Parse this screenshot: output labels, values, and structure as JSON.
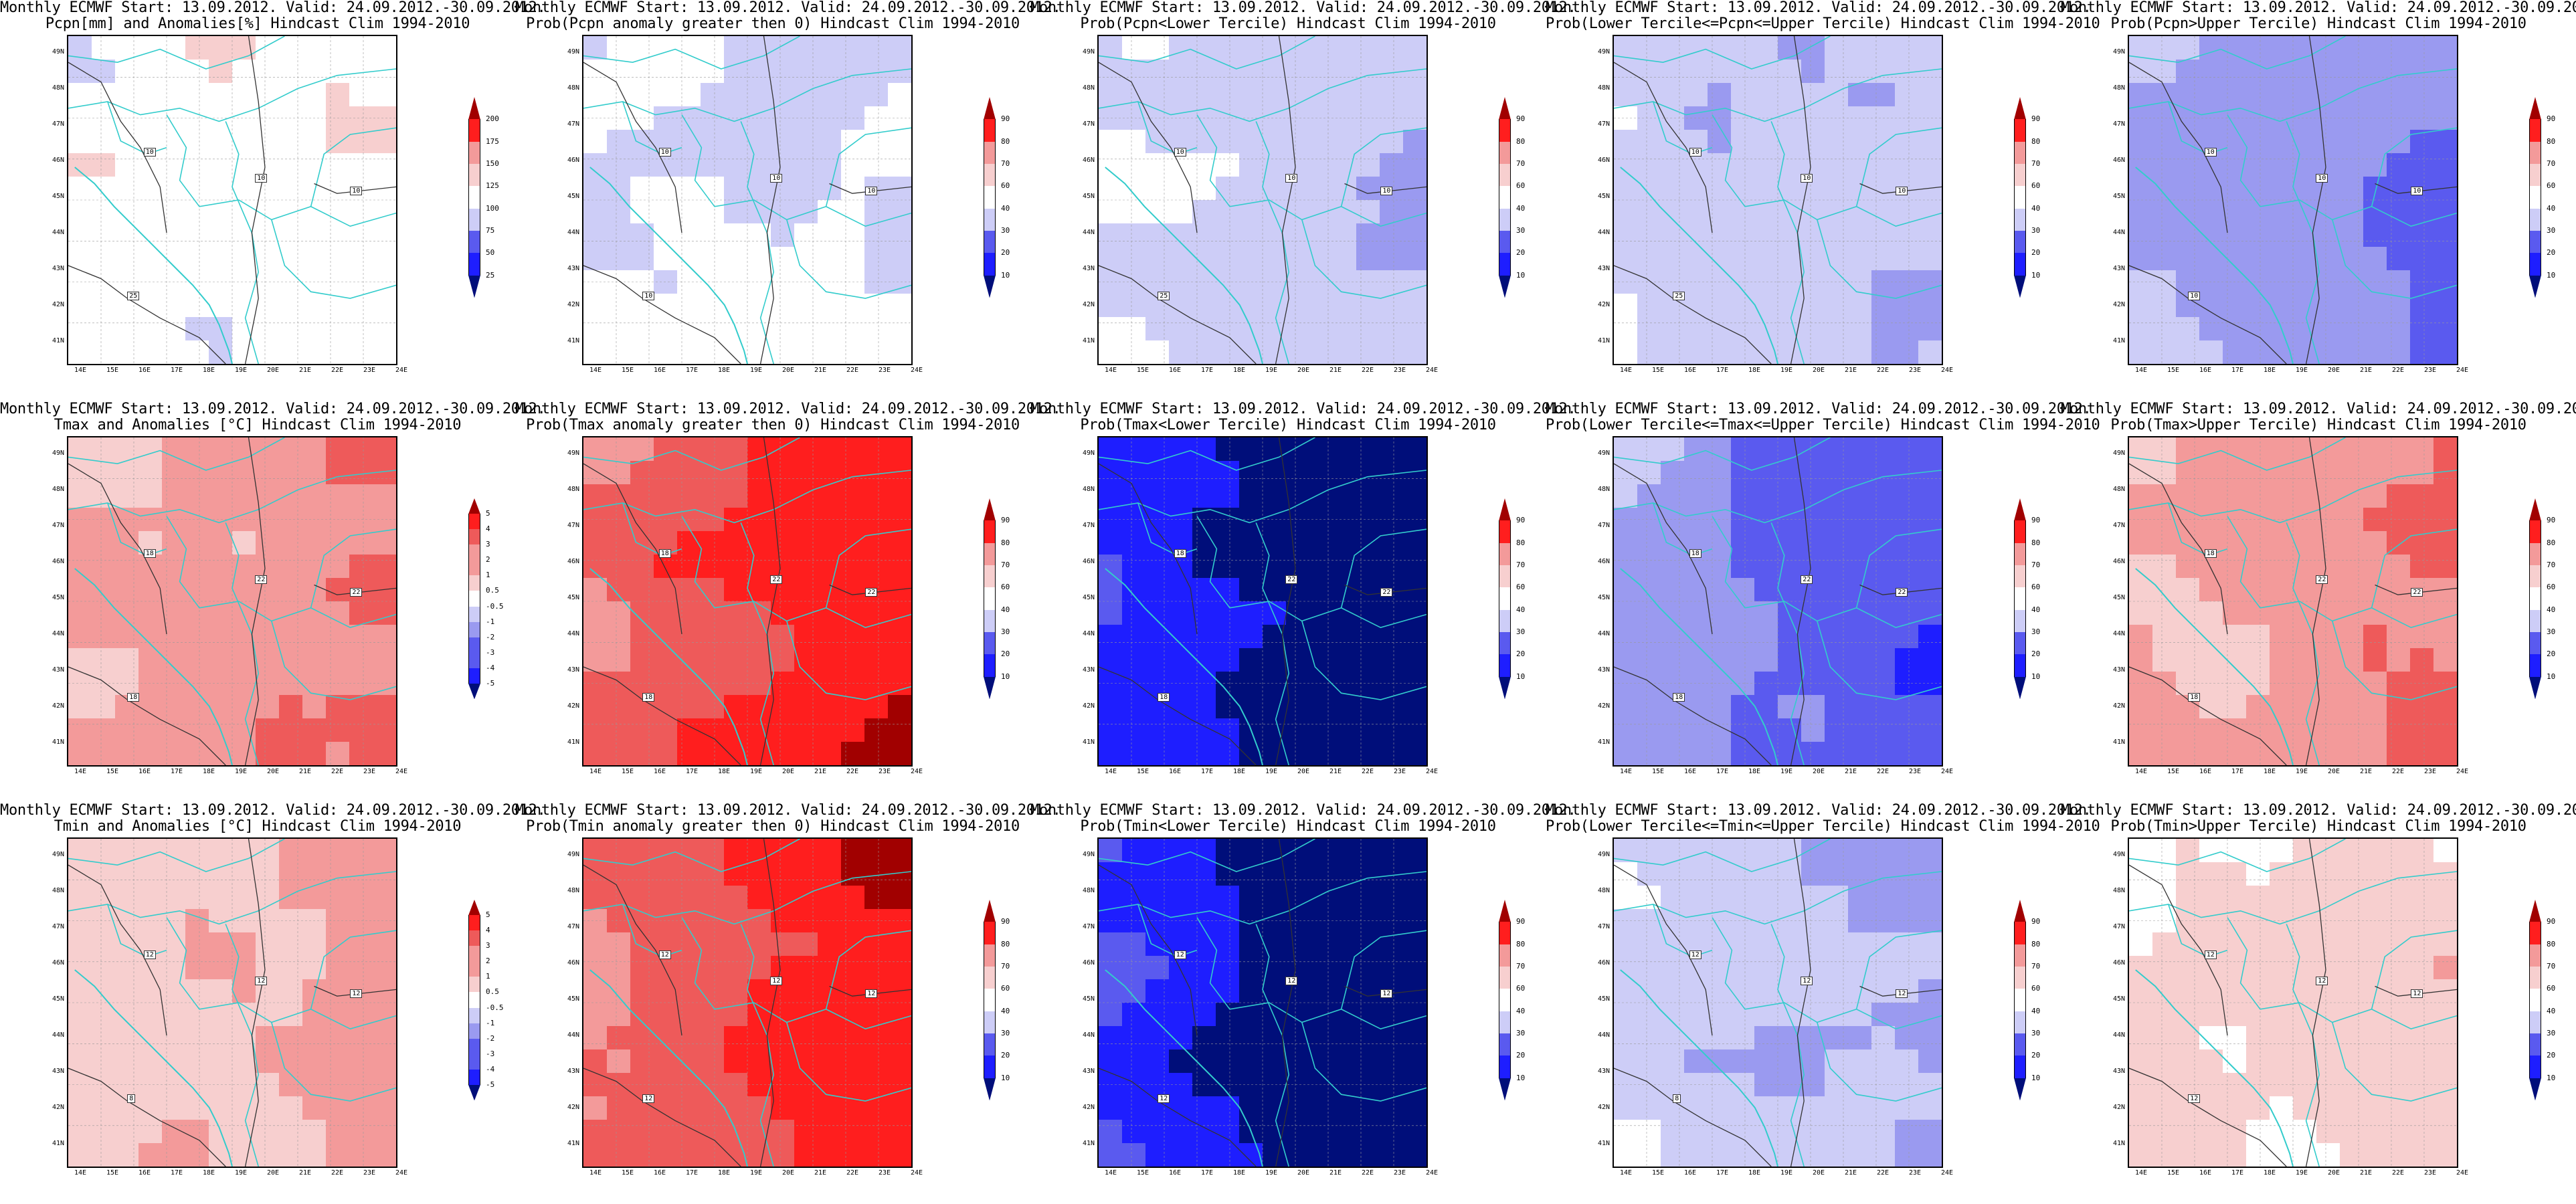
{
  "title_line1": "Monthly ECMWF Start: 13.09.2012. Valid: 24.09.2012.-30.09.2012.",
  "lat_labels": [
    "49N",
    "48N",
    "47N",
    "46N",
    "45N",
    "44N",
    "43N",
    "42N",
    "41N"
  ],
  "lon_labels": [
    "14E",
    "15E",
    "16E",
    "17E",
    "18E",
    "19E",
    "20E",
    "21E",
    "22E",
    "23E",
    "24E"
  ],
  "colors": {
    "scale": [
      "#000e7a",
      "#1e1eff",
      "#5a5aef",
      "#9a9af0",
      "#cdcdf7",
      "#ffffff",
      "#f7cfcf",
      "#f39a9a",
      "#ee5a5a",
      "#ff1e1e",
      "#a10000"
    ],
    "borders": "#33cccc",
    "contours": "#333333"
  },
  "colorbars": {
    "pcpn": [
      "25",
      "50",
      "75",
      "100",
      "125",
      "150",
      "175",
      "200"
    ],
    "anom": [
      "-5",
      "-4",
      "-3",
      "-2",
      "-1",
      "-0.5",
      "0.5",
      "1",
      "2",
      "3",
      "4",
      "5"
    ],
    "prob": [
      "10",
      "20",
      "30",
      "40",
      "60",
      "70",
      "80",
      "90"
    ]
  },
  "panels": [
    {
      "id": "pcpn-anomaly",
      "line2": "Pcpn[mm] and Anomalies[%] Hindcast Clim 1994-2010",
      "bar": "pcpn",
      "bias": 0,
      "seed": 1,
      "labels": [
        "10",
        "10",
        "10",
        "25"
      ]
    },
    {
      "id": "pcpn-prob-pos",
      "line2": "Prob(Pcpn anomaly greater then 0) Hindcast Clim 1994-2010",
      "bar": "prob",
      "bias": -0.3,
      "seed": 2,
      "labels": [
        "10",
        "10",
        "10",
        "10"
      ]
    },
    {
      "id": "pcpn-prob-lower",
      "line2": "Prob(Pcpn<Lower Tercile) Hindcast Clim 1994-2010",
      "bar": "prob",
      "bias": -0.6,
      "seed": 3,
      "labels": [
        "10",
        "10",
        "10",
        "25"
      ]
    },
    {
      "id": "pcpn-prob-middle",
      "line2": "Prob(Lower Tercile<=Pcpn<=Upper Tercile) Hindcast Clim 1994-2010",
      "bar": "prob",
      "bias": -0.7,
      "seed": 4,
      "labels": [
        "10",
        "10",
        "10",
        "25"
      ]
    },
    {
      "id": "pcpn-prob-upper",
      "line2": "Prob(Pcpn>Upper Tercile) Hindcast Clim 1994-2010",
      "bar": "prob",
      "bias": -1.4,
      "seed": 5,
      "labels": [
        "10",
        "10",
        "10",
        "10"
      ]
    },
    {
      "id": "tmax-anomaly",
      "line2": "Tmax and Anomalies [°C] Hindcast Clim 1994-2010",
      "bar": "anom",
      "bias": 1.3,
      "seed": 6,
      "labels": [
        "18",
        "22",
        "22",
        "18"
      ]
    },
    {
      "id": "tmax-prob-pos",
      "line2": "Prob(Tmax anomaly greater then 0) Hindcast Clim 1994-2010",
      "bar": "prob",
      "bias": 2.3,
      "seed": 7,
      "labels": [
        "18",
        "22",
        "22",
        "18"
      ]
    },
    {
      "id": "tmax-prob-lower",
      "line2": "Prob(Tmax<Lower Tercile) Hindcast Clim 1994-2010",
      "bar": "prob",
      "bias": -3.2,
      "seed": 8,
      "labels": [
        "18",
        "22",
        "22",
        "18"
      ]
    },
    {
      "id": "tmax-prob-middle",
      "line2": "Prob(Lower Tercile<=Tmax<=Upper Tercile) Hindcast Clim 1994-2010",
      "bar": "prob",
      "bias": -1.6,
      "seed": 9,
      "labels": [
        "18",
        "22",
        "22",
        "18"
      ]
    },
    {
      "id": "tmax-prob-upper",
      "line2": "Prob(Tmax>Upper Tercile) Hindcast Clim 1994-2010",
      "bar": "prob",
      "bias": 1.3,
      "seed": 10,
      "labels": [
        "18",
        "22",
        "22",
        "18"
      ]
    },
    {
      "id": "tmin-anomaly",
      "line2": "Tmin and Anomalies [°C] Hindcast Clim 1994-2010",
      "bar": "anom",
      "bias": 0.9,
      "seed": 11,
      "labels": [
        "12",
        "12",
        "12",
        "8"
      ]
    },
    {
      "id": "tmin-prob-pos",
      "line2": "Prob(Tmin anomaly greater then 0) Hindcast Clim 1994-2010",
      "bar": "prob",
      "bias": 2.2,
      "seed": 12,
      "labels": [
        "12",
        "12",
        "12",
        "12"
      ]
    },
    {
      "id": "tmin-prob-lower",
      "line2": "Prob(Tmin<Lower Tercile) Hindcast Clim 1994-2010",
      "bar": "prob",
      "bias": -3.0,
      "seed": 13,
      "labels": [
        "12",
        "12",
        "12",
        "12"
      ]
    },
    {
      "id": "tmin-prob-middle",
      "line2": "Prob(Lower Tercile<=Tmin<=Upper Tercile) Hindcast Clim 1994-2010",
      "bar": "prob",
      "bias": -0.8,
      "seed": 14,
      "labels": [
        "12",
        "12",
        "12",
        "8"
      ]
    },
    {
      "id": "tmin-prob-upper",
      "line2": "Prob(Tmin>Upper Tercile) Hindcast Clim 1994-2010",
      "bar": "prob",
      "bias": 0.6,
      "seed": 15,
      "labels": [
        "12",
        "12",
        "12",
        "12"
      ]
    }
  ]
}
